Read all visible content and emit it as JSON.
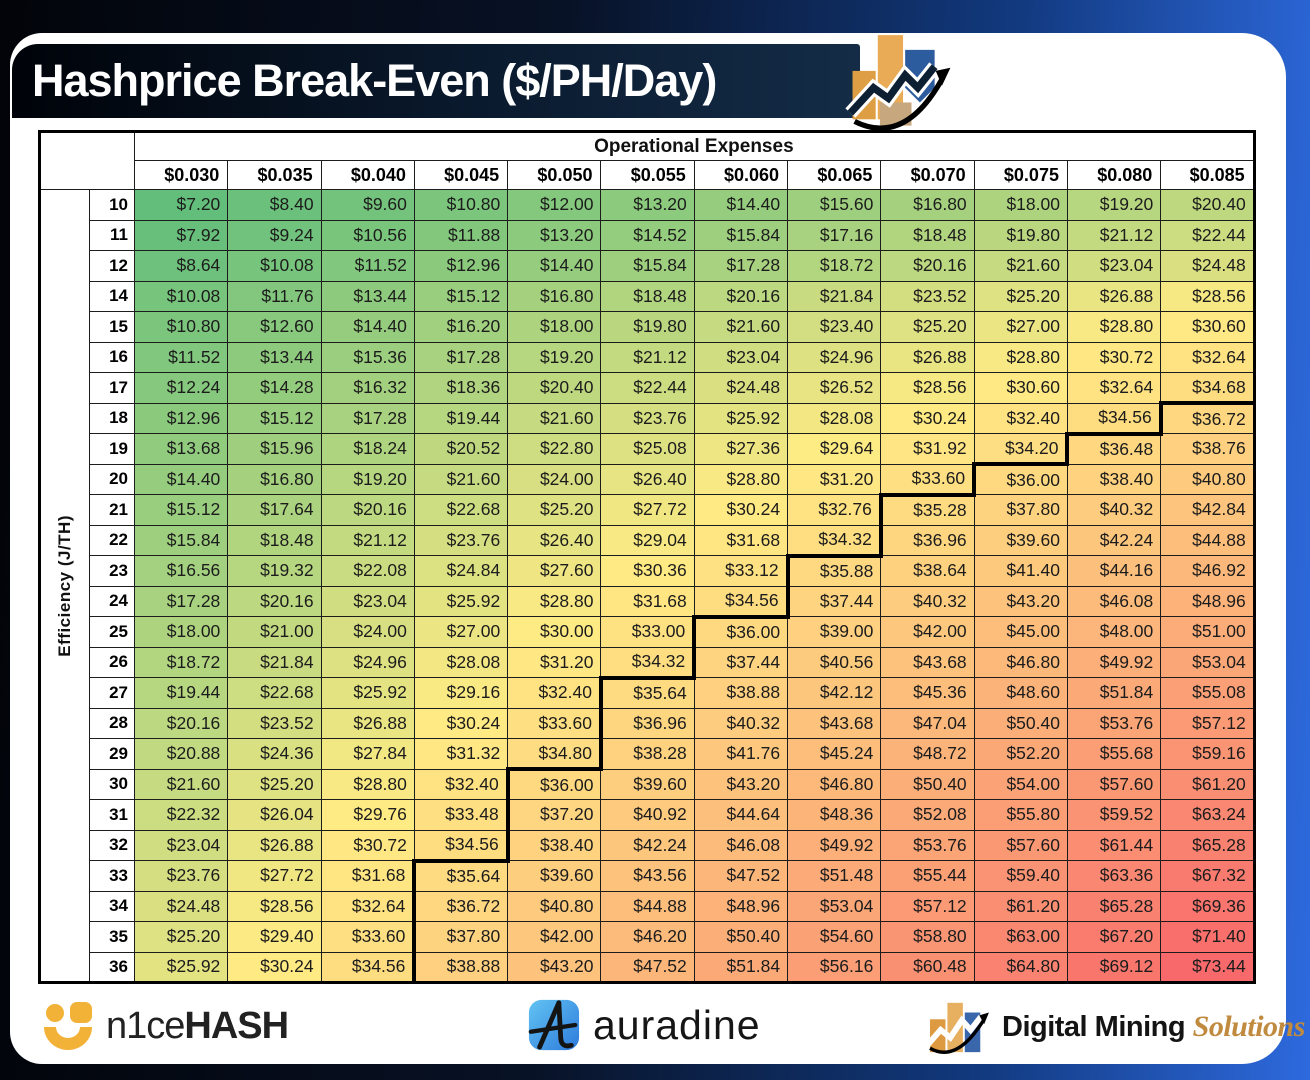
{
  "header": {
    "title": "Hashprice Break-Even ($/PH/Day)",
    "logo_icon": "bar-chart-growth-arrow-icon"
  },
  "table": {
    "column_group_label": "Operational Expenses",
    "row_group_label": "Efficiency (J/TH)",
    "value_prefix": "$",
    "break_even_threshold": 35,
    "grid_color": "#1c1c1c",
    "step_line_color": "#000000"
  },
  "chart_data": {
    "type": "heatmap",
    "title": "Hashprice Break-Even ($/PH/Day)",
    "x_label": "Operational Expenses",
    "y_label": "Efficiency (J/TH)",
    "x_tick_labels": [
      "$0.030",
      "$0.035",
      "$0.040",
      "$0.045",
      "$0.050",
      "$0.055",
      "$0.060",
      "$0.065",
      "$0.070",
      "$0.075",
      "$0.080",
      "$0.085"
    ],
    "y_tick_labels": [
      "10",
      "11",
      "12",
      "14",
      "15",
      "16",
      "17",
      "18",
      "19",
      "20",
      "21",
      "22",
      "23",
      "24",
      "25",
      "26",
      "27",
      "28",
      "29",
      "30",
      "31",
      "32",
      "33",
      "34",
      "35",
      "36"
    ],
    "values": [
      [
        7.2,
        8.4,
        9.6,
        10.8,
        12.0,
        13.2,
        14.4,
        15.6,
        16.8,
        18.0,
        19.2,
        20.4
      ],
      [
        7.92,
        9.24,
        10.56,
        11.88,
        13.2,
        14.52,
        15.84,
        17.16,
        18.48,
        19.8,
        21.12,
        22.44
      ],
      [
        8.64,
        10.08,
        11.52,
        12.96,
        14.4,
        15.84,
        17.28,
        18.72,
        20.16,
        21.6,
        23.04,
        24.48
      ],
      [
        10.08,
        11.76,
        13.44,
        15.12,
        16.8,
        18.48,
        20.16,
        21.84,
        23.52,
        25.2,
        26.88,
        28.56
      ],
      [
        10.8,
        12.6,
        14.4,
        16.2,
        18.0,
        19.8,
        21.6,
        23.4,
        25.2,
        27.0,
        28.8,
        30.6
      ],
      [
        11.52,
        13.44,
        15.36,
        17.28,
        19.2,
        21.12,
        23.04,
        24.96,
        26.88,
        28.8,
        30.72,
        32.64
      ],
      [
        12.24,
        14.28,
        16.32,
        18.36,
        20.4,
        22.44,
        24.48,
        26.52,
        28.56,
        30.6,
        32.64,
        34.68
      ],
      [
        12.96,
        15.12,
        17.28,
        19.44,
        21.6,
        23.76,
        25.92,
        28.08,
        30.24,
        32.4,
        34.56,
        36.72
      ],
      [
        13.68,
        15.96,
        18.24,
        20.52,
        22.8,
        25.08,
        27.36,
        29.64,
        31.92,
        34.2,
        36.48,
        38.76
      ],
      [
        14.4,
        16.8,
        19.2,
        21.6,
        24.0,
        26.4,
        28.8,
        31.2,
        33.6,
        36.0,
        38.4,
        40.8
      ],
      [
        15.12,
        17.64,
        20.16,
        22.68,
        25.2,
        27.72,
        30.24,
        32.76,
        35.28,
        37.8,
        40.32,
        42.84
      ],
      [
        15.84,
        18.48,
        21.12,
        23.76,
        26.4,
        29.04,
        31.68,
        34.32,
        36.96,
        39.6,
        42.24,
        44.88
      ],
      [
        16.56,
        19.32,
        22.08,
        24.84,
        27.6,
        30.36,
        33.12,
        35.88,
        38.64,
        41.4,
        44.16,
        46.92
      ],
      [
        17.28,
        20.16,
        23.04,
        25.92,
        28.8,
        31.68,
        34.56,
        37.44,
        40.32,
        43.2,
        46.08,
        48.96
      ],
      [
        18.0,
        21.0,
        24.0,
        27.0,
        30.0,
        33.0,
        36.0,
        39.0,
        42.0,
        45.0,
        48.0,
        51.0
      ],
      [
        18.72,
        21.84,
        24.96,
        28.08,
        31.2,
        34.32,
        37.44,
        40.56,
        43.68,
        46.8,
        49.92,
        53.04
      ],
      [
        19.44,
        22.68,
        25.92,
        29.16,
        32.4,
        35.64,
        38.88,
        42.12,
        45.36,
        48.6,
        51.84,
        55.08
      ],
      [
        20.16,
        23.52,
        26.88,
        30.24,
        33.6,
        36.96,
        40.32,
        43.68,
        47.04,
        50.4,
        53.76,
        57.12
      ],
      [
        20.88,
        24.36,
        27.84,
        31.32,
        34.8,
        38.28,
        41.76,
        45.24,
        48.72,
        52.2,
        55.68,
        59.16
      ],
      [
        21.6,
        25.2,
        28.8,
        32.4,
        36.0,
        39.6,
        43.2,
        46.8,
        50.4,
        54.0,
        57.6,
        61.2
      ],
      [
        22.32,
        26.04,
        29.76,
        33.48,
        37.2,
        40.92,
        44.64,
        48.36,
        52.08,
        55.8,
        59.52,
        63.24
      ],
      [
        23.04,
        26.88,
        30.72,
        34.56,
        38.4,
        42.24,
        46.08,
        49.92,
        53.76,
        57.6,
        61.44,
        65.28
      ],
      [
        23.76,
        27.72,
        31.68,
        35.64,
        39.6,
        43.56,
        47.52,
        51.48,
        55.44,
        59.4,
        63.36,
        67.32
      ],
      [
        24.48,
        28.56,
        32.64,
        36.72,
        40.8,
        44.88,
        48.96,
        53.04,
        57.12,
        61.2,
        65.28,
        69.36
      ],
      [
        25.2,
        29.4,
        33.6,
        37.8,
        42.0,
        46.2,
        50.4,
        54.6,
        58.8,
        63.0,
        67.2,
        71.4
      ],
      [
        25.92,
        30.24,
        34.56,
        38.88,
        43.2,
        47.52,
        51.84,
        56.16,
        60.48,
        64.8,
        69.12,
        73.44
      ]
    ],
    "color_scale": {
      "min_color": "#63BE7B",
      "mid_color": "#FFEB84",
      "max_color": "#F8696B",
      "midpoint": "50th-percentile"
    },
    "annotations": {
      "break_even_step_line": "black stair-step contour at value >= $35"
    },
    "legend_position": "none",
    "grid": true
  },
  "footer": {
    "logos": [
      {
        "name": "NiceHash",
        "text_regular": "n1ce",
        "text_bold": "HASH"
      },
      {
        "name": "Auradine",
        "text": "auradine"
      },
      {
        "name": "Digital Mining Solutions",
        "text_black": "Digital Mining ",
        "text_gold": "Solutions"
      }
    ]
  }
}
